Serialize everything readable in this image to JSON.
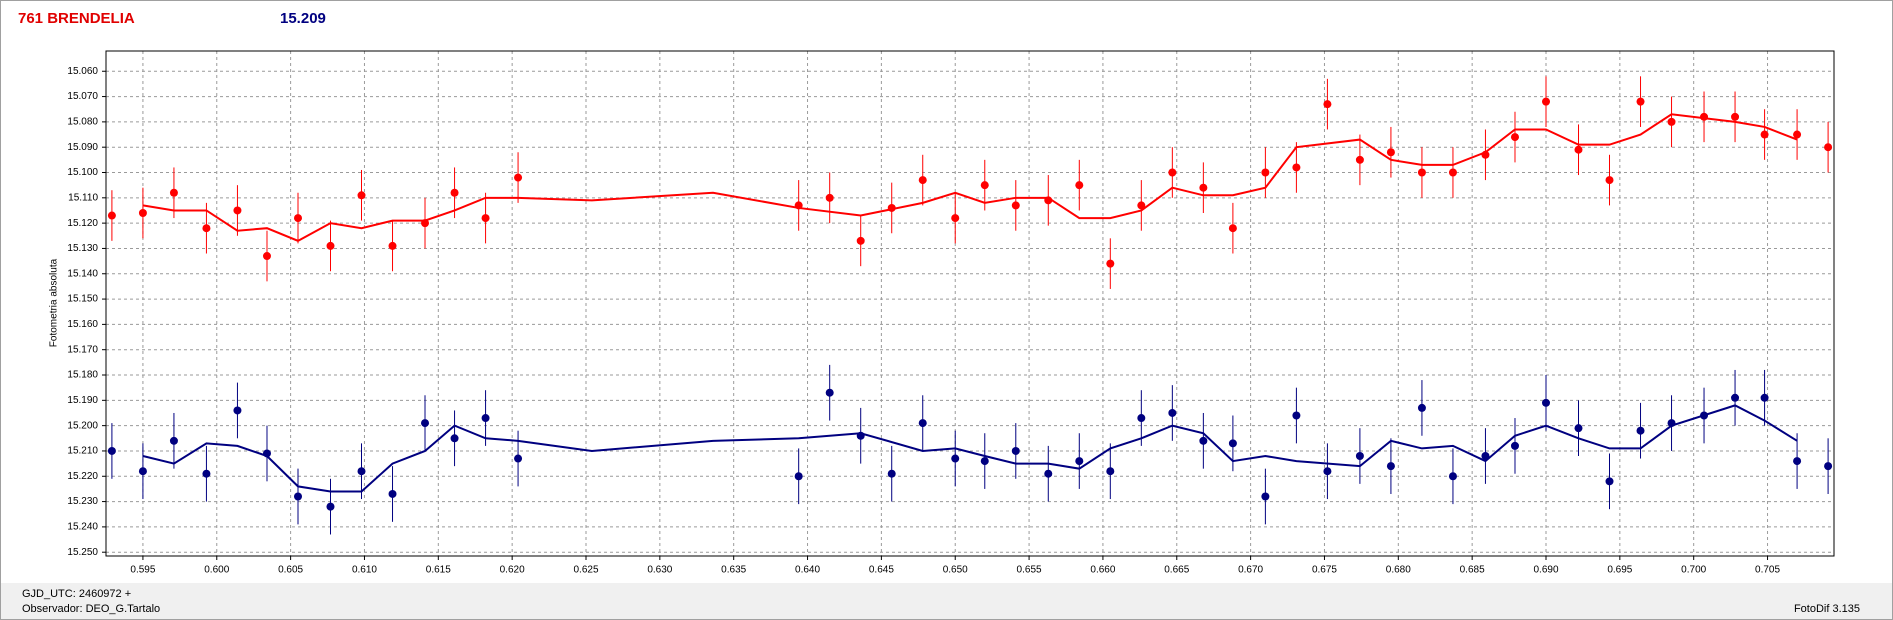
{
  "chart_data": {
    "type": "scatter",
    "title": "761 BRENDELIA",
    "subtitle": "15.209",
    "y_label": "Fotometria absoluta",
    "notes": [
      "GJD_UTC: 2460972 +",
      "Observador: DEO_G.Tartalo"
    ],
    "software": "FotoDif 3.135",
    "xlim": [
      0.5925,
      0.7095
    ],
    "ylim": [
      15.2515,
      15.052
    ],
    "grid": true,
    "xticks": [
      0.595,
      {
        "value": 0.6,
        "label": "0.600"
      },
      0.605,
      {
        "value": 0.61,
        "label": "0.610"
      },
      0.615,
      {
        "value": 0.62,
        "label": "0.620"
      },
      0.625,
      {
        "value": 0.63,
        "label": "0.630"
      },
      0.635,
      {
        "value": 0.64,
        "label": "0.640"
      },
      0.645,
      {
        "value": 0.65,
        "label": "0.650"
      },
      0.655,
      {
        "value": 0.66,
        "label": "0.660"
      },
      0.665,
      {
        "value": 0.67,
        "label": "0.670"
      },
      0.675,
      {
        "value": 0.68,
        "label": "0.680"
      },
      0.685,
      {
        "value": 0.69,
        "label": "0.690"
      },
      0.695,
      {
        "value": 0.7,
        "label": "0.700"
      },
      0.705
    ],
    "yticks": [
      {
        "value": 15.06,
        "label": "15.060"
      },
      {
        "value": 15.07,
        "label": "15.070"
      },
      {
        "value": 15.08,
        "label": "15.080"
      },
      {
        "value": 15.09,
        "label": "15.090"
      },
      {
        "value": 15.1,
        "label": "15.100"
      },
      {
        "value": 15.11,
        "label": "15.110"
      },
      {
        "value": 15.12,
        "label": "15.120"
      },
      {
        "value": 15.13,
        "label": "15.130"
      },
      {
        "value": 15.14,
        "label": "15.140"
      },
      {
        "value": 15.15,
        "label": "15.150"
      },
      {
        "value": 15.16,
        "label": "15.160"
      },
      {
        "value": 15.17,
        "label": "15.170"
      },
      {
        "value": 15.18,
        "label": "15.180"
      },
      {
        "value": 15.19,
        "label": "15.190"
      },
      {
        "value": 15.2,
        "label": "15.200"
      },
      {
        "value": 15.21,
        "label": "15.210"
      },
      {
        "value": 15.22,
        "label": "15.220"
      },
      {
        "value": 15.23,
        "label": "15.230"
      },
      {
        "value": 15.24,
        "label": "15.240"
      },
      {
        "value": 15.25,
        "label": "15.250"
      }
    ],
    "x": [
      0.5929,
      0.595,
      0.5971,
      0.5993,
      0.6014,
      0.6034,
      0.6055,
      0.6077,
      0.6098,
      0.6119,
      0.6141,
      0.6161,
      0.6182,
      0.6204,
      0.6394,
      0.6415,
      0.6436,
      0.6457,
      0.6478,
      0.65,
      0.652,
      0.6541,
      0.6563,
      0.6584,
      0.6605,
      0.6626,
      0.6647,
      0.6668,
      0.6688,
      0.671,
      0.6731,
      0.6752,
      0.6774,
      0.6795,
      0.6816,
      0.6837,
      0.6859,
      0.6879,
      0.69,
      0.6922,
      0.6943,
      0.6964,
      0.6985,
      0.7007,
      0.7028,
      0.7048,
      0.707,
      0.7091
    ],
    "fit_x": [
      0.595,
      0.5971,
      0.5993,
      0.6014,
      0.6034,
      0.6055,
      0.6077,
      0.6098,
      0.6119,
      0.6141,
      0.6161,
      0.6182,
      0.6204,
      0.6254,
      0.6336,
      0.6394,
      0.6436,
      0.6478,
      0.65,
      0.652,
      0.6541,
      0.6563,
      0.6584,
      0.6605,
      0.6626,
      0.6647,
      0.6668,
      0.6688,
      0.671,
      0.6731,
      0.6774,
      0.6795,
      0.6816,
      0.6837,
      0.6859,
      0.6879,
      0.69,
      0.6922,
      0.6943,
      0.6964,
      0.6985,
      0.7028,
      0.7048,
      0.707
    ],
    "series": [
      {
        "color": "#ff0000",
        "error": 0.01,
        "values": [
          15.117,
          15.116,
          15.108,
          15.122,
          15.115,
          15.133,
          15.118,
          15.129,
          15.109,
          15.129,
          15.12,
          15.108,
          15.118,
          15.102,
          15.113,
          15.11,
          15.127,
          15.114,
          15.103,
          15.118,
          15.105,
          15.113,
          15.111,
          15.105,
          15.136,
          15.113,
          15.1,
          15.106,
          15.122,
          15.1,
          15.098,
          15.073,
          15.095,
          15.092,
          15.1,
          15.1,
          15.093,
          15.086,
          15.072,
          15.091,
          15.103,
          15.072,
          15.08,
          15.078,
          15.078,
          15.085,
          15.085,
          15.09
        ],
        "fit": [
          15.113,
          15.115,
          15.115,
          15.123,
          15.122,
          15.127,
          15.12,
          15.122,
          15.119,
          15.119,
          15.115,
          15.11,
          15.11,
          15.111,
          15.108,
          15.114,
          15.117,
          15.112,
          15.108,
          15.112,
          15.11,
          15.11,
          15.118,
          15.118,
          15.115,
          15.106,
          15.109,
          15.109,
          15.106,
          15.09,
          15.087,
          15.095,
          15.097,
          15.097,
          15.092,
          15.083,
          15.083,
          15.089,
          15.089,
          15.085,
          15.077,
          15.08,
          15.082,
          15.087
        ]
      },
      {
        "color": "#000080",
        "error": 0.011,
        "values": [
          15.21,
          15.218,
          15.206,
          15.219,
          15.194,
          15.211,
          15.228,
          15.232,
          15.218,
          15.227,
          15.199,
          15.205,
          15.197,
          15.213,
          15.22,
          15.187,
          15.204,
          15.219,
          15.199,
          15.213,
          15.214,
          15.21,
          15.219,
          15.214,
          15.218,
          15.197,
          15.195,
          15.206,
          15.207,
          15.228,
          15.196,
          15.218,
          15.212,
          15.216,
          15.193,
          15.22,
          15.212,
          15.208,
          15.191,
          15.201,
          15.222,
          15.202,
          15.199,
          15.196,
          15.189,
          15.189,
          15.214,
          15.216
        ],
        "fit": [
          15.212,
          15.215,
          15.207,
          15.208,
          15.212,
          15.224,
          15.226,
          15.226,
          15.215,
          15.21,
          15.2,
          15.205,
          15.206,
          15.21,
          15.206,
          15.205,
          15.203,
          15.21,
          15.209,
          15.212,
          15.215,
          15.215,
          15.217,
          15.209,
          15.205,
          15.2,
          15.203,
          15.214,
          15.212,
          15.214,
          15.216,
          15.206,
          15.209,
          15.208,
          15.214,
          15.204,
          15.2,
          15.205,
          15.209,
          15.209,
          15.2,
          15.192,
          15.198,
          15.206
        ]
      }
    ]
  }
}
